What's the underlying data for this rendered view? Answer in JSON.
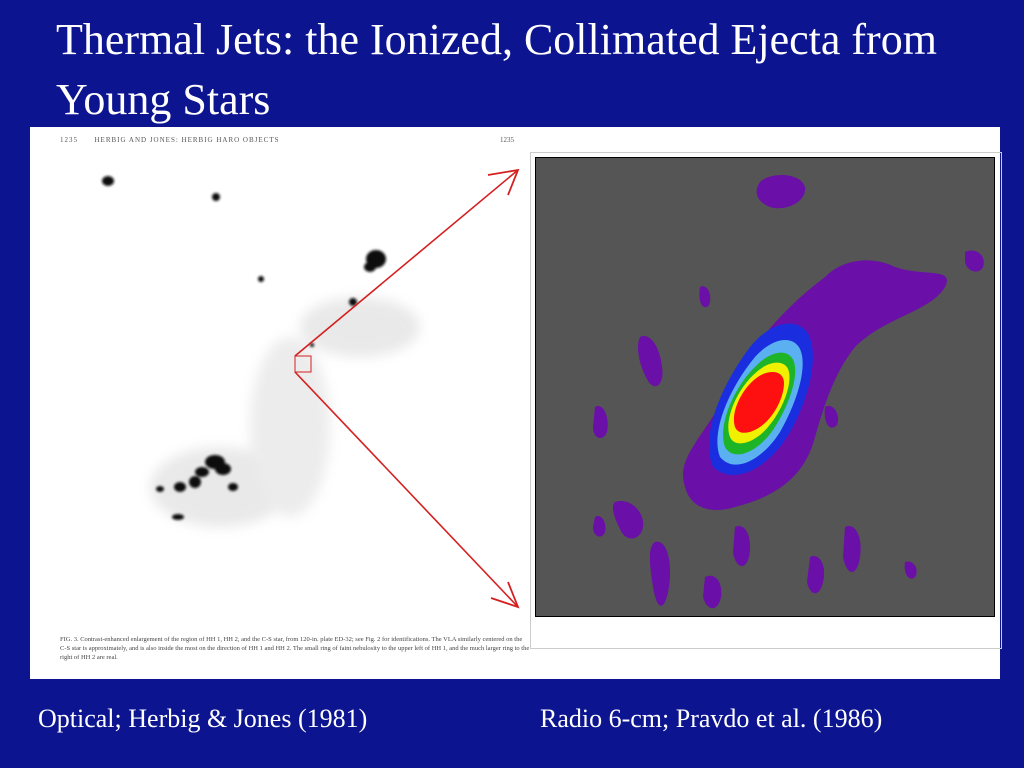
{
  "slide": {
    "title": "Thermal Jets: the Ionized, Collimated Ejecta from Young Stars",
    "caption_left": "Optical; Herbig & Jones (1981)",
    "caption_right": "Radio 6-cm; Pravdo et al. (1986)"
  },
  "optical_page": {
    "page_left_number": "1235",
    "header": "HERBIG AND JONES: HERBIG HARO OBJECTS",
    "page_right_number": "1235",
    "figure_caption": "FIG. 3. Contrast-enhanced enlargement of the region of HH 1, HH 2, and the C-S star, from 120-in. plate ED-32; see Fig. 2 for identifications. The VLA similarly centered on the C-S star is approximately, and is also inside the most on the direction of HH 1 and HH 2. The small ring of faint nebulosity to the upper left of HH 1, and the much larger ring to the right of HH 2 are real."
  },
  "colors": {
    "background": "#0c1490",
    "text": "#ffffff",
    "pointer": "#d42020",
    "radio_background": "#555555",
    "contour_purple": "#6a0fa8",
    "contour_blue": "#1a2ee0",
    "contour_lightblue": "#5ab0f0",
    "contour_green": "#1eb428",
    "contour_yellow": "#f0f000",
    "contour_red": "#ff1010"
  }
}
